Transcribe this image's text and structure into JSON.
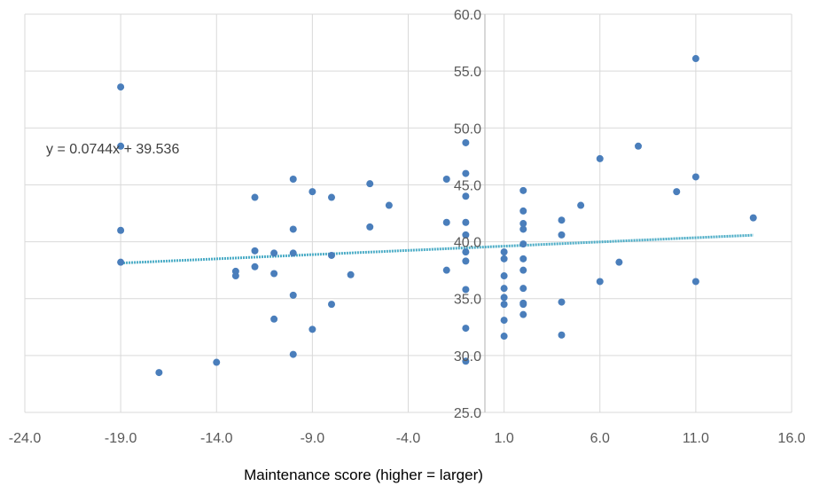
{
  "chart_data": {
    "type": "scatter",
    "title": "",
    "xlabel": "Maintenance score (higher = larger)",
    "ylabel": "",
    "xlim": [
      -24,
      16
    ],
    "ylim": [
      25,
      60
    ],
    "x_ticks": [
      "-24.0",
      "-19.0",
      "-14.0",
      "-9.0",
      "-4.0",
      "1.0",
      "6.0",
      "11.0",
      "16.0"
    ],
    "y_ticks": [
      "25.0",
      "30.0",
      "35.0",
      "40.0",
      "45.0",
      "50.0",
      "55.0",
      "60.0"
    ],
    "grid": true,
    "legend": "none",
    "colors": {
      "points": "#4A7EBB",
      "trendline": "#4BACC6",
      "grid": "#D9D9D9"
    },
    "trendline": {
      "type": "linear",
      "slope": 0.0744,
      "intercept": 39.536,
      "x_range": [
        -19,
        14
      ],
      "label": "y = 0.0744x + 39.536"
    },
    "points": [
      [
        -19,
        53.6
      ],
      [
        -19,
        48.4
      ],
      [
        -19,
        41.0
      ],
      [
        -19,
        38.2
      ],
      [
        -17,
        28.5
      ],
      [
        -14,
        29.4
      ],
      [
        -13,
        37.4
      ],
      [
        -13,
        37.0
      ],
      [
        -12,
        43.9
      ],
      [
        -12,
        39.2
      ],
      [
        -12,
        37.8
      ],
      [
        -11,
        39.0
      ],
      [
        -11,
        37.2
      ],
      [
        -11,
        33.2
      ],
      [
        -10,
        45.5
      ],
      [
        -10,
        41.1
      ],
      [
        -10,
        39.0
      ],
      [
        -10,
        35.3
      ],
      [
        -10,
        30.1
      ],
      [
        -9,
        44.4
      ],
      [
        -9,
        32.3
      ],
      [
        -8,
        43.9
      ],
      [
        -8,
        38.8
      ],
      [
        -8,
        34.5
      ],
      [
        -7,
        37.1
      ],
      [
        -6,
        45.1
      ],
      [
        -6,
        41.3
      ],
      [
        -5,
        43.2
      ],
      [
        -2,
        45.5
      ],
      [
        -2,
        41.7
      ],
      [
        -2,
        37.5
      ],
      [
        -1,
        48.7
      ],
      [
        -1,
        46.0
      ],
      [
        -1,
        44.0
      ],
      [
        -1,
        41.7
      ],
      [
        -1,
        40.6
      ],
      [
        -1,
        39.1
      ],
      [
        -1,
        38.3
      ],
      [
        -1,
        35.8
      ],
      [
        -1,
        32.4
      ],
      [
        -1,
        29.5
      ],
      [
        1,
        39.1
      ],
      [
        1,
        38.5
      ],
      [
        1,
        37.0
      ],
      [
        1,
        35.9
      ],
      [
        1,
        35.1
      ],
      [
        1,
        34.5
      ],
      [
        1,
        33.1
      ],
      [
        1,
        31.7
      ],
      [
        2,
        44.5
      ],
      [
        2,
        42.7
      ],
      [
        2,
        41.6
      ],
      [
        2,
        41.1
      ],
      [
        2,
        39.8
      ],
      [
        2,
        38.5
      ],
      [
        2,
        37.5
      ],
      [
        2,
        35.9
      ],
      [
        2,
        34.6
      ],
      [
        2,
        34.5
      ],
      [
        2,
        33.6
      ],
      [
        4,
        41.9
      ],
      [
        4,
        40.6
      ],
      [
        4,
        34.7
      ],
      [
        4,
        31.8
      ],
      [
        5,
        43.2
      ],
      [
        6,
        47.3
      ],
      [
        6,
        36.5
      ],
      [
        7,
        38.2
      ],
      [
        8,
        48.4
      ],
      [
        10,
        44.4
      ],
      [
        11,
        56.1
      ],
      [
        11,
        45.7
      ],
      [
        11,
        36.5
      ],
      [
        14,
        42.1
      ]
    ]
  }
}
